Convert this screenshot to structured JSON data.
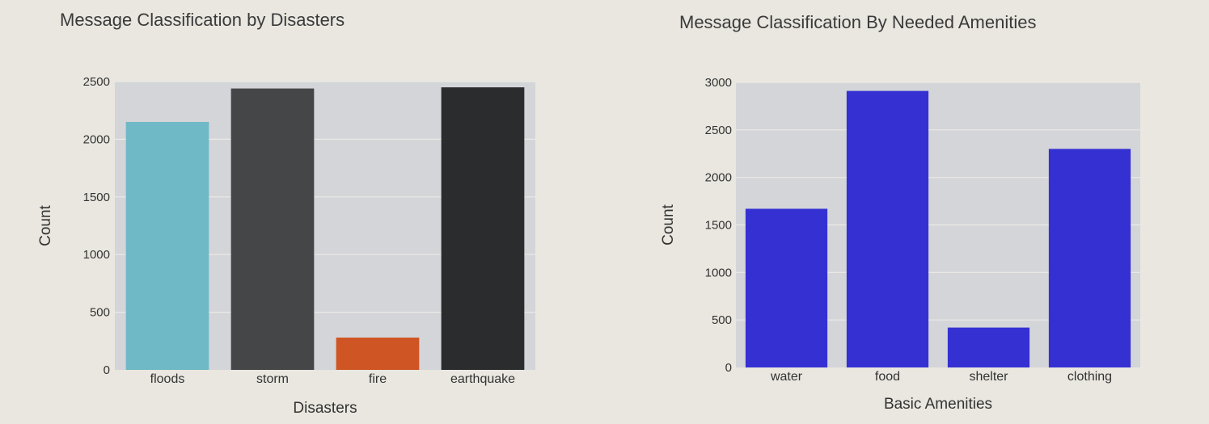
{
  "colors": {
    "background": "#e9e7df",
    "plot_bg": "#d4d5d9",
    "grid": "#eceae6"
  },
  "chart_data": [
    {
      "type": "bar",
      "title": "Message Classification by Disasters",
      "xlabel": "Disasters",
      "ylabel": "Count",
      "categories": [
        "floods",
        "storm",
        "fire",
        "earthquake"
      ],
      "values": [
        2150,
        2440,
        280,
        2450
      ],
      "colors": [
        "#6fb9c7",
        "#454648",
        "#cf5524",
        "#2b2c2e"
      ],
      "ylim": [
        0,
        2500
      ],
      "yticks": [
        0,
        500,
        1000,
        1500,
        2000,
        2500
      ],
      "grid": true
    },
    {
      "type": "bar",
      "title": "Message Classification By Needed Amenities",
      "xlabel": "Basic Amenities",
      "ylabel": "Count",
      "categories": [
        "water",
        "food",
        "shelter",
        "clothing"
      ],
      "values": [
        1670,
        2910,
        420,
        2300
      ],
      "colors": [
        "#3530d2",
        "#3530d2",
        "#3530d2",
        "#3530d2"
      ],
      "ylim": [
        0,
        3000
      ],
      "yticks": [
        0,
        500,
        1000,
        1500,
        2000,
        2500,
        3000
      ],
      "grid": true
    }
  ]
}
